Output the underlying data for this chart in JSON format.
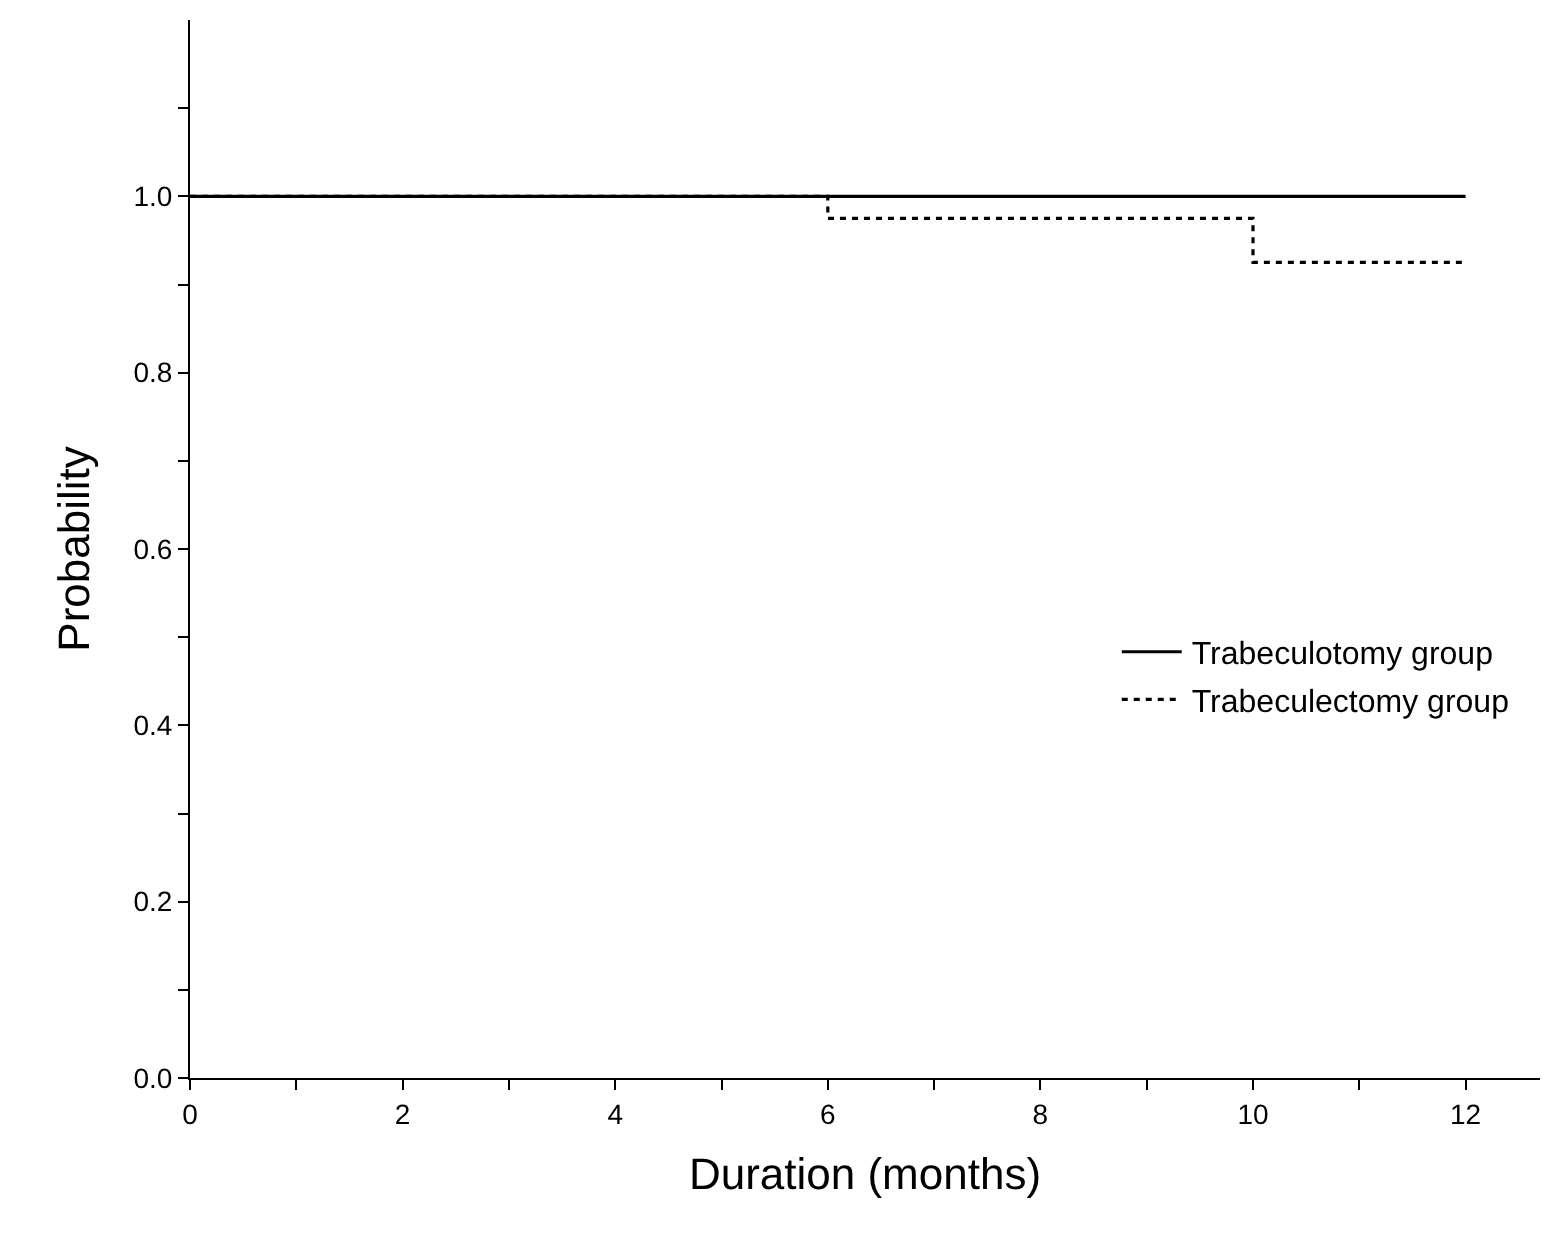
{
  "chart_data": {
    "type": "step",
    "xlabel": "Duration (months)",
    "ylabel": "Probability",
    "x": [
      0,
      6,
      10,
      12
    ],
    "series": [
      {
        "name": "Trabeculotomy group",
        "color": "#000000",
        "values": [
          1.0,
          1.0,
          1.0,
          1.0
        ],
        "line_style": "solid"
      },
      {
        "name": "Trabeculectomy group",
        "color": "#000000",
        "values": [
          1.0,
          0.975,
          0.925,
          0.925
        ],
        "line_style": "dotted"
      }
    ],
    "xlim": [
      0,
      12.7
    ],
    "ylim": [
      0,
      1.2
    ],
    "xticks": [
      0,
      {
        "value": 1,
        "label": null
      },
      2,
      {
        "value": 3,
        "label": null
      },
      4,
      {
        "value": 5,
        "label": null
      },
      6,
      {
        "value": 7,
        "label": null
      },
      8,
      {
        "value": 9,
        "label": null
      },
      10,
      {
        "value": 11,
        "label": null
      },
      12
    ],
    "yticks": [
      "0.0",
      {
        "value": 0.1,
        "label": null
      },
      {
        "value": 0.2,
        "label": "0.2"
      },
      {
        "value": 0.3,
        "label": null
      },
      {
        "value": 0.4,
        "label": "0.4"
      },
      {
        "value": 0.5,
        "label": null
      },
      {
        "value": 0.6,
        "label": "0.6"
      },
      {
        "value": 0.7,
        "label": null
      },
      {
        "value": 0.8,
        "label": "0.8"
      },
      {
        "value": 0.9,
        "label": null
      },
      {
        "value": 1.0,
        "label": "1.0"
      },
      {
        "value": 1.1,
        "label": null
      }
    ],
    "legend": "right"
  }
}
